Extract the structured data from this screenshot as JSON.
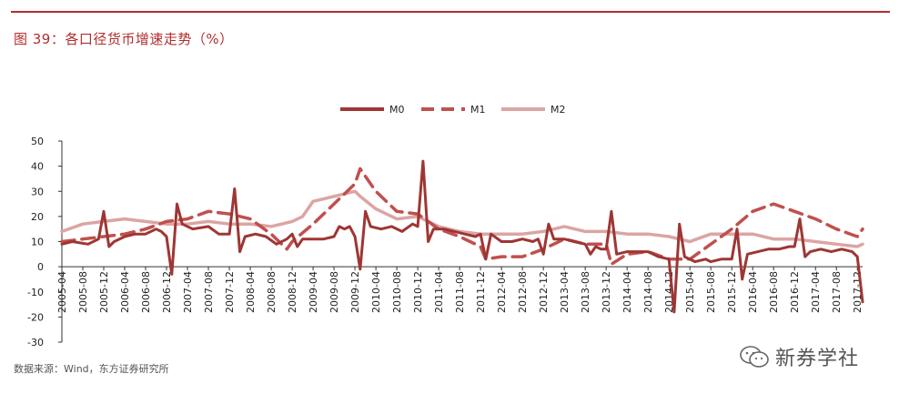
{
  "figure": {
    "title": "图 39：各口径货币增速走势（%）",
    "source": "数据来源：Wind，东方证券研究所",
    "watermark": "新券学社"
  },
  "chart_data": {
    "type": "line",
    "title": "",
    "xlabel": "",
    "ylabel": "",
    "ylim": [
      -30,
      50
    ],
    "yticks": [
      50,
      40,
      30,
      20,
      10,
      0,
      -10,
      -20,
      -30
    ],
    "grid": false,
    "legend_position": "top-center",
    "x_tick_labels": [
      "2005-04",
      "2005-08",
      "2005-12",
      "2006-04",
      "2006-08",
      "2006-12",
      "2007-04",
      "2007-08",
      "2007-12",
      "2008-04",
      "2008-08",
      "2008-12",
      "2009-04",
      "2009-08",
      "2009-12",
      "2010-04",
      "2010-08",
      "2010-12",
      "2011-04",
      "2011-08",
      "2011-12",
      "2012-04",
      "2012-08",
      "2012-12",
      "2013-04",
      "2013-08",
      "2013-12",
      "2014-04",
      "2014-08",
      "2014-12",
      "2015-04",
      "2015-08",
      "2015-12",
      "2016-04",
      "2016-08",
      "2016-12",
      "2017-04",
      "2017-08",
      "2017-12"
    ],
    "series": [
      {
        "name": "M0",
        "color": "#9e3634",
        "dash": "solid",
        "points": [
          [
            "2005-04",
            9
          ],
          [
            "2005-06",
            10
          ],
          [
            "2005-09",
            9
          ],
          [
            "2005-11",
            11
          ],
          [
            "2005-12",
            22
          ],
          [
            "2006-01",
            8
          ],
          [
            "2006-02",
            10
          ],
          [
            "2006-04",
            12
          ],
          [
            "2006-06",
            13
          ],
          [
            "2006-08",
            13
          ],
          [
            "2006-10",
            15
          ],
          [
            "2006-11",
            14
          ],
          [
            "2006-12",
            12
          ],
          [
            "2007-01",
            -3
          ],
          [
            "2007-02",
            25
          ],
          [
            "2007-03",
            17
          ],
          [
            "2007-05",
            15
          ],
          [
            "2007-08",
            16
          ],
          [
            "2007-10",
            13
          ],
          [
            "2007-12",
            13
          ],
          [
            "2008-01",
            31
          ],
          [
            "2008-02",
            6
          ],
          [
            "2008-03",
            12
          ],
          [
            "2008-05",
            13
          ],
          [
            "2008-07",
            12
          ],
          [
            "2008-09",
            9
          ],
          [
            "2008-11",
            11
          ],
          [
            "2008-12",
            13
          ],
          [
            "2009-01",
            8
          ],
          [
            "2009-02",
            11
          ],
          [
            "2009-04",
            11
          ],
          [
            "2009-06",
            11
          ],
          [
            "2009-08",
            12
          ],
          [
            "2009-09",
            16
          ],
          [
            "2009-10",
            15
          ],
          [
            "2009-11",
            16
          ],
          [
            "2009-12",
            12
          ],
          [
            "2010-01",
            -1
          ],
          [
            "2010-02",
            22
          ],
          [
            "2010-03",
            16
          ],
          [
            "2010-05",
            15
          ],
          [
            "2010-07",
            16
          ],
          [
            "2010-09",
            14
          ],
          [
            "2010-11",
            17
          ],
          [
            "2010-12",
            16
          ],
          [
            "2011-01",
            42
          ],
          [
            "2011-02",
            10
          ],
          [
            "2011-03",
            15
          ],
          [
            "2011-05",
            15
          ],
          [
            "2011-07",
            14
          ],
          [
            "2011-09",
            13
          ],
          [
            "2011-11",
            12
          ],
          [
            "2011-12",
            13
          ],
          [
            "2012-01",
            3
          ],
          [
            "2012-02",
            13
          ],
          [
            "2012-04",
            10
          ],
          [
            "2012-06",
            10
          ],
          [
            "2012-08",
            11
          ],
          [
            "2012-10",
            10
          ],
          [
            "2012-11",
            11
          ],
          [
            "2012-12",
            5
          ],
          [
            "2013-01",
            17
          ],
          [
            "2013-02",
            11
          ],
          [
            "2013-04",
            11
          ],
          [
            "2013-06",
            10
          ],
          [
            "2013-08",
            9
          ],
          [
            "2013-09",
            5
          ],
          [
            "2013-10",
            8
          ],
          [
            "2013-11",
            7
          ],
          [
            "2013-12",
            7
          ],
          [
            "2014-01",
            22
          ],
          [
            "2014-02",
            5
          ],
          [
            "2014-04",
            6
          ],
          [
            "2014-06",
            6
          ],
          [
            "2014-08",
            6
          ],
          [
            "2014-10",
            4
          ],
          [
            "2014-12",
            3
          ],
          [
            "2015-01",
            -18
          ],
          [
            "2015-02",
            17
          ],
          [
            "2015-03",
            4
          ],
          [
            "2015-05",
            2
          ],
          [
            "2015-07",
            3
          ],
          [
            "2015-08",
            2
          ],
          [
            "2015-10",
            3
          ],
          [
            "2015-12",
            3
          ],
          [
            "2016-01",
            15
          ],
          [
            "2016-02",
            -5
          ],
          [
            "2016-03",
            5
          ],
          [
            "2016-05",
            6
          ],
          [
            "2016-07",
            7
          ],
          [
            "2016-09",
            7
          ],
          [
            "2016-11",
            8
          ],
          [
            "2016-12",
            8
          ],
          [
            "2017-01",
            19
          ],
          [
            "2017-02",
            4
          ],
          [
            "2017-03",
            6
          ],
          [
            "2017-05",
            7
          ],
          [
            "2017-07",
            6
          ],
          [
            "2017-09",
            7
          ],
          [
            "2017-11",
            6
          ],
          [
            "2017-12",
            4
          ],
          [
            "2018-01",
            -14
          ]
        ]
      },
      {
        "name": "M1",
        "color": "#c0504d",
        "dash": "dashed",
        "points": [
          [
            "2005-04",
            10
          ],
          [
            "2005-08",
            11
          ],
          [
            "2005-12",
            12
          ],
          [
            "2006-04",
            13
          ],
          [
            "2006-08",
            15
          ],
          [
            "2006-12",
            18
          ],
          [
            "2007-04",
            19
          ],
          [
            "2007-08",
            22
          ],
          [
            "2007-12",
            21
          ],
          [
            "2008-04",
            19
          ],
          [
            "2008-08",
            13
          ],
          [
            "2008-11",
            7
          ],
          [
            "2008-12",
            10
          ],
          [
            "2009-04",
            17
          ],
          [
            "2009-08",
            25
          ],
          [
            "2009-12",
            33
          ],
          [
            "2010-01",
            39
          ],
          [
            "2010-04",
            30
          ],
          [
            "2010-08",
            22
          ],
          [
            "2010-12",
            21
          ],
          [
            "2011-04",
            15
          ],
          [
            "2011-08",
            12
          ],
          [
            "2011-12",
            8
          ],
          [
            "2012-01",
            3
          ],
          [
            "2012-04",
            4
          ],
          [
            "2012-08",
            4
          ],
          [
            "2012-12",
            7
          ],
          [
            "2013-04",
            11
          ],
          [
            "2013-08",
            9
          ],
          [
            "2013-12",
            9
          ],
          [
            "2014-01",
            1
          ],
          [
            "2014-04",
            5
          ],
          [
            "2014-08",
            6
          ],
          [
            "2014-12",
            3
          ],
          [
            "2015-04",
            3
          ],
          [
            "2015-08",
            9
          ],
          [
            "2015-12",
            15
          ],
          [
            "2016-04",
            22
          ],
          [
            "2016-08",
            25
          ],
          [
            "2016-12",
            22
          ],
          [
            "2017-04",
            19
          ],
          [
            "2017-08",
            15
          ],
          [
            "2017-12",
            12
          ],
          [
            "2018-01",
            15
          ]
        ]
      },
      {
        "name": "M2",
        "color": "#dba5a4",
        "dash": "solid",
        "points": [
          [
            "2005-04",
            14
          ],
          [
            "2005-08",
            17
          ],
          [
            "2005-12",
            18
          ],
          [
            "2006-04",
            19
          ],
          [
            "2006-08",
            18
          ],
          [
            "2006-12",
            17
          ],
          [
            "2007-04",
            17
          ],
          [
            "2007-08",
            18
          ],
          [
            "2007-12",
            17
          ],
          [
            "2008-04",
            17
          ],
          [
            "2008-08",
            16
          ],
          [
            "2008-12",
            18
          ],
          [
            "2009-02",
            20
          ],
          [
            "2009-04",
            26
          ],
          [
            "2009-08",
            28
          ],
          [
            "2009-12",
            30
          ],
          [
            "2010-01",
            28
          ],
          [
            "2010-04",
            23
          ],
          [
            "2010-08",
            19
          ],
          [
            "2010-12",
            20
          ],
          [
            "2011-04",
            16
          ],
          [
            "2011-08",
            14
          ],
          [
            "2011-12",
            13
          ],
          [
            "2012-04",
            13
          ],
          [
            "2012-08",
            13
          ],
          [
            "2012-12",
            14
          ],
          [
            "2013-04",
            16
          ],
          [
            "2013-08",
            14
          ],
          [
            "2013-12",
            14
          ],
          [
            "2014-04",
            13
          ],
          [
            "2014-08",
            13
          ],
          [
            "2014-12",
            12
          ],
          [
            "2015-04",
            10
          ],
          [
            "2015-08",
            13
          ],
          [
            "2015-12",
            13
          ],
          [
            "2016-04",
            13
          ],
          [
            "2016-08",
            11
          ],
          [
            "2016-12",
            11
          ],
          [
            "2017-04",
            10
          ],
          [
            "2017-08",
            9
          ],
          [
            "2017-12",
            8
          ],
          [
            "2018-01",
            9
          ]
        ]
      }
    ]
  }
}
